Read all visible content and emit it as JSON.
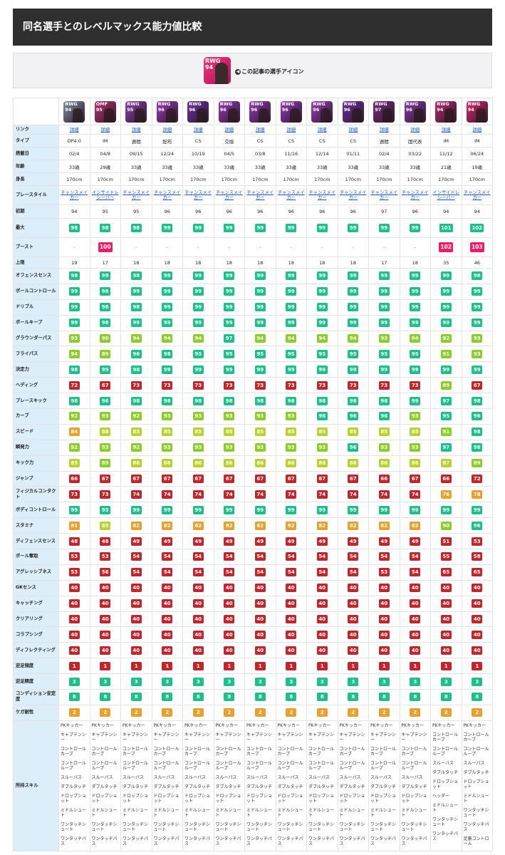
{
  "title": "同名選手とのレベルマックス能力値比較",
  "icon_box": {
    "position": "RWG",
    "rating": "94",
    "caption": "この記事の選手アイコン"
  },
  "players": [
    {
      "pos": "RWG",
      "ovr": "94",
      "color": "#8090a0",
      "link": "詳細",
      "type": "DP4.0",
      "date": "02/4",
      "age": "33歳",
      "height": "170cm",
      "style": "チャンスメイカー",
      "init": "94",
      "max": "98",
      "boost": "-",
      "limit": "19",
      "stats": [
        "98",
        "99",
        "99",
        "99",
        "93",
        "94",
        "98",
        "72",
        "98",
        "92",
        "84",
        "92",
        "85",
        "66",
        "73",
        "99",
        "81",
        "48",
        "53",
        "53",
        "40",
        "40",
        "40",
        "40",
        "40",
        "1",
        "3",
        "8",
        "2"
      ],
      "skills": [
        "PKキッカー",
        "キャプテンシー",
        "コントロールカーブ",
        "コントロールループ",
        "スルーパス",
        "ダブルタッチ",
        "ドロップショット",
        "ミドルシュート",
        "ワンタッチシュート",
        "ワンタッチパス"
      ]
    },
    {
      "pos": "OMF",
      "ovr": "95",
      "color": "#c0306c",
      "link": "詳細",
      "type": "IM",
      "date": "04/8",
      "age": "29歳",
      "height": "170cm",
      "style": "インサイドレシーバー",
      "init": "95",
      "max": "98",
      "boost": "100",
      "limit": "17",
      "stats": [
        "99",
        "98",
        "98",
        "98",
        "90",
        "89",
        "99",
        "67",
        "96",
        "93",
        "88",
        "93",
        "89",
        "67",
        "73",
        "95",
        "85",
        "48",
        "53",
        "56",
        "40",
        "40",
        "40",
        "40",
        "40",
        "1",
        "3",
        "8",
        "2"
      ],
      "skills": [
        "PKキッカー",
        "キャプテンシー",
        "コントロールカーブ",
        "コントロールループ",
        "スルーパス",
        "ダブルタッチ",
        "ドロップショット",
        "ミドルシュート",
        "ワンタッチシュート",
        "ワンタッチパス"
      ]
    },
    {
      "pos": "RWG",
      "ovr": "95",
      "color": "#9040b0",
      "link": "詳細",
      "type": "週間",
      "date": "09/15",
      "age": "33歳",
      "height": "170cm",
      "style": "チャンスメイカー",
      "init": "95",
      "max": "98",
      "boost": "-",
      "limit": "18",
      "stats": [
        "98",
        "99",
        "98",
        "99",
        "94",
        "96",
        "98",
        "73",
        "98",
        "92",
        "85",
        "92",
        "86",
        "67",
        "74",
        "99",
        "82",
        "49",
        "54",
        "54",
        "40",
        "40",
        "40",
        "40",
        "40",
        "1",
        "3",
        "8",
        "2"
      ],
      "skills": [
        "PKキッカー",
        "キャプテンシー",
        "コントロールカーブ",
        "コントロールループ",
        "スルーパス",
        "ダブルタッチ",
        "ドロップショット",
        "ミドルシュート",
        "ワンタッチシュート",
        "ワンタッチパス"
      ]
    },
    {
      "pos": "RWG",
      "ovr": "96",
      "color": "#a03cb8",
      "link": "詳細",
      "type": "配布",
      "date": "12/24",
      "age": "33歳",
      "height": "170cm",
      "style": "チャンスメイカー",
      "init": "96",
      "max": "99",
      "boost": "-",
      "limit": "18",
      "stats": [
        "99",
        "99",
        "99",
        "99",
        "94",
        "98",
        "99",
        "73",
        "98",
        "93",
        "85",
        "93",
        "86",
        "67",
        "74",
        "99",
        "82",
        "49",
        "54",
        "54",
        "40",
        "40",
        "40",
        "40",
        "40",
        "1",
        "3",
        "8",
        "2"
      ],
      "skills": [
        "PKキッカー",
        "キャプテンシー",
        "コントロールカーブ",
        "コントロールループ",
        "スルーパス",
        "ダブルタッチ",
        "ドロップショット",
        "ミドルシュート",
        "ワンタッチシュート",
        "ワンタッチパス"
      ]
    },
    {
      "pos": "RWG",
      "ovr": "96",
      "color": "#7030a0",
      "link": "詳細",
      "type": "CS",
      "date": "10/19",
      "age": "33歳",
      "height": "170cm",
      "style": "チャンスメイカー",
      "init": "96",
      "max": "99",
      "boost": "-",
      "limit": "18",
      "stats": [
        "99",
        "99",
        "99",
        "99",
        "94",
        "95",
        "99",
        "73",
        "98",
        "93",
        "85",
        "93",
        "86",
        "67",
        "74",
        "99",
        "82",
        "49",
        "54",
        "54",
        "40",
        "40",
        "40",
        "40",
        "40",
        "1",
        "3",
        "8",
        "2"
      ],
      "skills": [
        "PKキッカー",
        "キャプテンシー",
        "コントロールカーブ",
        "コントロールループ",
        "スルーパス",
        "ダブルタッチ",
        "ドロップショット",
        "ミドルシュート",
        "ワンタッチシュート",
        "ワンタッチパス"
      ]
    },
    {
      "pos": "RWG",
      "ovr": "96",
      "color": "#9a3ab8",
      "link": "詳細",
      "type": "交換",
      "date": "04/5",
      "age": "33歳",
      "height": "170cm",
      "style": "チャンスメイカー",
      "init": "96",
      "max": "99",
      "boost": "-",
      "limit": "18",
      "stats": [
        "99",
        "99",
        "99",
        "99",
        "97",
        "95",
        "99",
        "73",
        "98",
        "93",
        "85",
        "93",
        "86",
        "67",
        "74",
        "99",
        "82",
        "49",
        "54",
        "54",
        "40",
        "40",
        "40",
        "40",
        "40",
        "1",
        "3",
        "8",
        "2"
      ],
      "skills": [
        "PKキッカー",
        "キャプテンシー",
        "コントロールカーブ",
        "コントロールループ",
        "スルーパス",
        "ダブルタッチ",
        "ドロップショット",
        "ミドルシュート",
        "ワンタッチシュート",
        "ワンタッチパス"
      ]
    },
    {
      "pos": "RWG",
      "ovr": "96",
      "color": "#9a3ab8",
      "link": "詳細",
      "type": "CS",
      "date": "03/8",
      "age": "33歳",
      "height": "170cm",
      "style": "チャンスメイカー",
      "init": "96",
      "max": "99",
      "boost": "-",
      "limit": "18",
      "stats": [
        "99",
        "99",
        "99",
        "99",
        "94",
        "95",
        "99",
        "73",
        "98",
        "93",
        "85",
        "93",
        "86",
        "67",
        "74",
        "99",
        "82",
        "49",
        "54",
        "54",
        "40",
        "40",
        "40",
        "40",
        "40",
        "1",
        "3",
        "8",
        "2"
      ],
      "skills": [
        "PKキッカー",
        "キャプテンシー",
        "コントロールカーブ",
        "コントロールループ",
        "スルーパス",
        "ダブルタッチ",
        "ドロップショット",
        "ミドルシュート",
        "ワンタッチシュート",
        "ワンタッチパス"
      ]
    },
    {
      "pos": "RWG",
      "ovr": "96",
      "color": "#9a3ab8",
      "link": "詳細",
      "type": "CS",
      "date": "11/16",
      "age": "33歳",
      "height": "170cm",
      "style": "チャンスメイカー",
      "init": "96",
      "max": "99",
      "boost": "-",
      "limit": "18",
      "stats": [
        "99",
        "99",
        "99",
        "99",
        "94",
        "95",
        "99",
        "73",
        "98",
        "93",
        "85",
        "93",
        "86",
        "67",
        "74",
        "99",
        "82",
        "49",
        "54",
        "54",
        "40",
        "40",
        "40",
        "40",
        "40",
        "1",
        "3",
        "8",
        "2"
      ],
      "skills": [
        "PKキッカー",
        "キャプテンシー",
        "コントロールカーブ",
        "コントロールループ",
        "スルーパス",
        "ダブルタッチ",
        "ドロップショット",
        "ミドルシュート",
        "ワンタッチシュート",
        "ワンタッチパス"
      ]
    },
    {
      "pos": "RWG",
      "ovr": "96",
      "color": "#a03cb8",
      "link": "詳細",
      "type": "CS",
      "date": "12/14",
      "age": "33歳",
      "height": "170cm",
      "style": "チャンスメイカー",
      "init": "96",
      "max": "99",
      "boost": "-",
      "limit": "18",
      "stats": [
        "99",
        "99",
        "99",
        "99",
        "94",
        "95",
        "99",
        "73",
        "98",
        "96",
        "85",
        "93",
        "86",
        "67",
        "74",
        "99",
        "82",
        "49",
        "54",
        "54",
        "40",
        "40",
        "40",
        "40",
        "40",
        "1",
        "3",
        "8",
        "2"
      ],
      "skills": [
        "PKキッカー",
        "キャプテンシー",
        "コントロールカーブ",
        "コントロールループ",
        "スルーパス",
        "ダブルタッチ",
        "ドロップショット",
        "ミドルシュート",
        "ワンタッチシュート",
        "ワンタッチパス"
      ]
    },
    {
      "pos": "RWG",
      "ovr": "96",
      "color": "#7030a0",
      "link": "詳細",
      "type": "CS",
      "date": "01/11",
      "age": "33歳",
      "height": "170cm",
      "style": "チャンスメイカー",
      "init": "96",
      "max": "99",
      "boost": "-",
      "limit": "18",
      "stats": [
        "99",
        "99",
        "99",
        "99",
        "94",
        "95",
        "99",
        "73",
        "98",
        "96",
        "85",
        "96",
        "86",
        "67",
        "74",
        "99",
        "82",
        "49",
        "54",
        "54",
        "40",
        "40",
        "40",
        "40",
        "40",
        "1",
        "3",
        "8",
        "2"
      ],
      "skills": [
        "PKキッカー",
        "キャプテンシー",
        "コントロールカーブ",
        "コントロールループ",
        "スルーパス",
        "ダブルタッチ",
        "ドロップショット",
        "ミドルシュート",
        "ワンタッチシュート",
        "ワンタッチパス"
      ]
    },
    {
      "pos": "RWG",
      "ovr": "97",
      "color": "#7a2a7a",
      "link": "詳細",
      "type": "週間",
      "date": "02/4",
      "age": "33歳",
      "height": "170cm",
      "style": "チャンスメイカー",
      "init": "97",
      "max": "99",
      "boost": "-",
      "limit": "17",
      "stats": [
        "99",
        "99",
        "99",
        "99",
        "93",
        "95",
        "99",
        "73",
        "98",
        "96",
        "85",
        "93",
        "86",
        "66",
        "74",
        "99",
        "82",
        "49",
        "54",
        "53",
        "40",
        "40",
        "40",
        "40",
        "40",
        "1",
        "3",
        "8",
        "2"
      ],
      "skills": [
        "PKキッカー",
        "キャプテンシー",
        "コントロールカーブ",
        "コントロールループ",
        "スルーパス",
        "ダブルタッチ",
        "ドロップショット",
        "ミドルシュート",
        "ワンタッチシュート",
        "ワンタッチパス"
      ]
    },
    {
      "pos": "RWG",
      "ovr": "96",
      "color": "#8a3aa8",
      "link": "詳細",
      "type": "国代表",
      "date": "03/22",
      "age": "33歳",
      "height": "170cm",
      "style": "チャンスメイカー",
      "init": "96",
      "max": "99",
      "boost": "-",
      "limit": "18",
      "stats": [
        "99",
        "99",
        "99",
        "99",
        "94",
        "95",
        "99",
        "73",
        "99",
        "93",
        "85",
        "93",
        "86",
        "67",
        "74",
        "99",
        "82",
        "49",
        "54",
        "54",
        "40",
        "40",
        "40",
        "40",
        "40",
        "1",
        "3",
        "8",
        "2"
      ],
      "skills": [
        "PKキッカー",
        "キャプテンシー",
        "コントロールカーブ",
        "コントロールループ",
        "スルーパス",
        "ダブルタッチ",
        "ドロップショット",
        "ミドルシュート",
        "ワンタッチシュート",
        "ワンタッチパス"
      ]
    },
    {
      "pos": "RWG",
      "ovr": "94",
      "color": "#c02a68",
      "link": "詳細",
      "type": "IM",
      "date": "11/12",
      "age": "21歳",
      "height": "170cm",
      "style": "インサイドレシーバー",
      "init": "94",
      "max": "101",
      "boost": "102",
      "limit": "35",
      "stats": [
        "99",
        "99",
        "99",
        "99",
        "92",
        "91",
        "99",
        "89",
        "97",
        "95",
        "91",
        "97",
        "87",
        "66",
        "76",
        "99",
        "90",
        "51",
        "55",
        "65",
        "40",
        "40",
        "40",
        "40",
        "40",
        "1",
        "3",
        "8",
        "2"
      ],
      "skills": [
        "PKキッカー",
        "コントロールカーブ",
        "コントロールループ",
        "スルーパス",
        "ダブルタッチ",
        "ドロップショット",
        "ヘッダー",
        "ミドルシュート",
        "ワンタッチシュート",
        "ワンタッチパス"
      ]
    },
    {
      "pos": "RWG",
      "ovr": "94",
      "color": "#e02868",
      "link": "詳細",
      "type": "IM",
      "date": "06/24",
      "age": "19歳",
      "height": "170cm",
      "style": "チャンスメイカー",
      "init": "94",
      "max": "102",
      "boost": "103",
      "limit": "46",
      "stats": [
        "98",
        "99",
        "99",
        "99",
        "93",
        "93",
        "99",
        "67",
        "98",
        "96",
        "98",
        "98",
        "89",
        "72",
        "78",
        "99",
        "96",
        "53",
        "58",
        "65",
        "40",
        "40",
        "40",
        "40",
        "40",
        "1",
        "3",
        "8",
        "2"
      ],
      "skills": [
        "PKキッカー",
        "コントロールカーブ",
        "コントロールループ",
        "スルーパス",
        "ダブルタッチ",
        "ドロップショット",
        "ミドルシュート",
        "ワンタッチシュート",
        "ワンタッチパス",
        "足裏コントロール"
      ]
    }
  ],
  "labels": {
    "link": "リンク",
    "type": "タイプ",
    "date": "搭載日",
    "age": "年齢",
    "height": "身長",
    "style": "プレースタイル",
    "init": "初期",
    "max": "最大",
    "boost": "ブースト",
    "limit": "上限",
    "skills": "所持スキル"
  },
  "stat_names": [
    "オフェンスセンス",
    "ボールコントロール",
    "ドリブル",
    "ボールキープ",
    "グラウンダーパス",
    "フライパス",
    "決定力",
    "ヘディング",
    "プレースキック",
    "カーブ",
    "スピード",
    "瞬発力",
    "キック力",
    "ジャンプ",
    "フィジカルコンタクト",
    "ボディコントロール",
    "スタミナ",
    "ディフェンスセンス",
    "ボール奪取",
    "アグレッシブネス",
    "GKセンス",
    "キャッチング",
    "クリアリング",
    "コラプシング",
    "ディフレクティング",
    "逆足頻度",
    "逆足精度",
    "コンディション安定度",
    "ケガ耐性"
  ],
  "colors": {
    "header_bg": "#2f2f2f",
    "label_bg": "#dbeef9",
    "link": "#1a55c8",
    "green": "#1fbf8b",
    "lime": "#8dcd2b",
    "yellow_green": "#bcd130",
    "orange": "#e8a02e",
    "red": "#c0272d",
    "pink": "#ee1c64"
  }
}
